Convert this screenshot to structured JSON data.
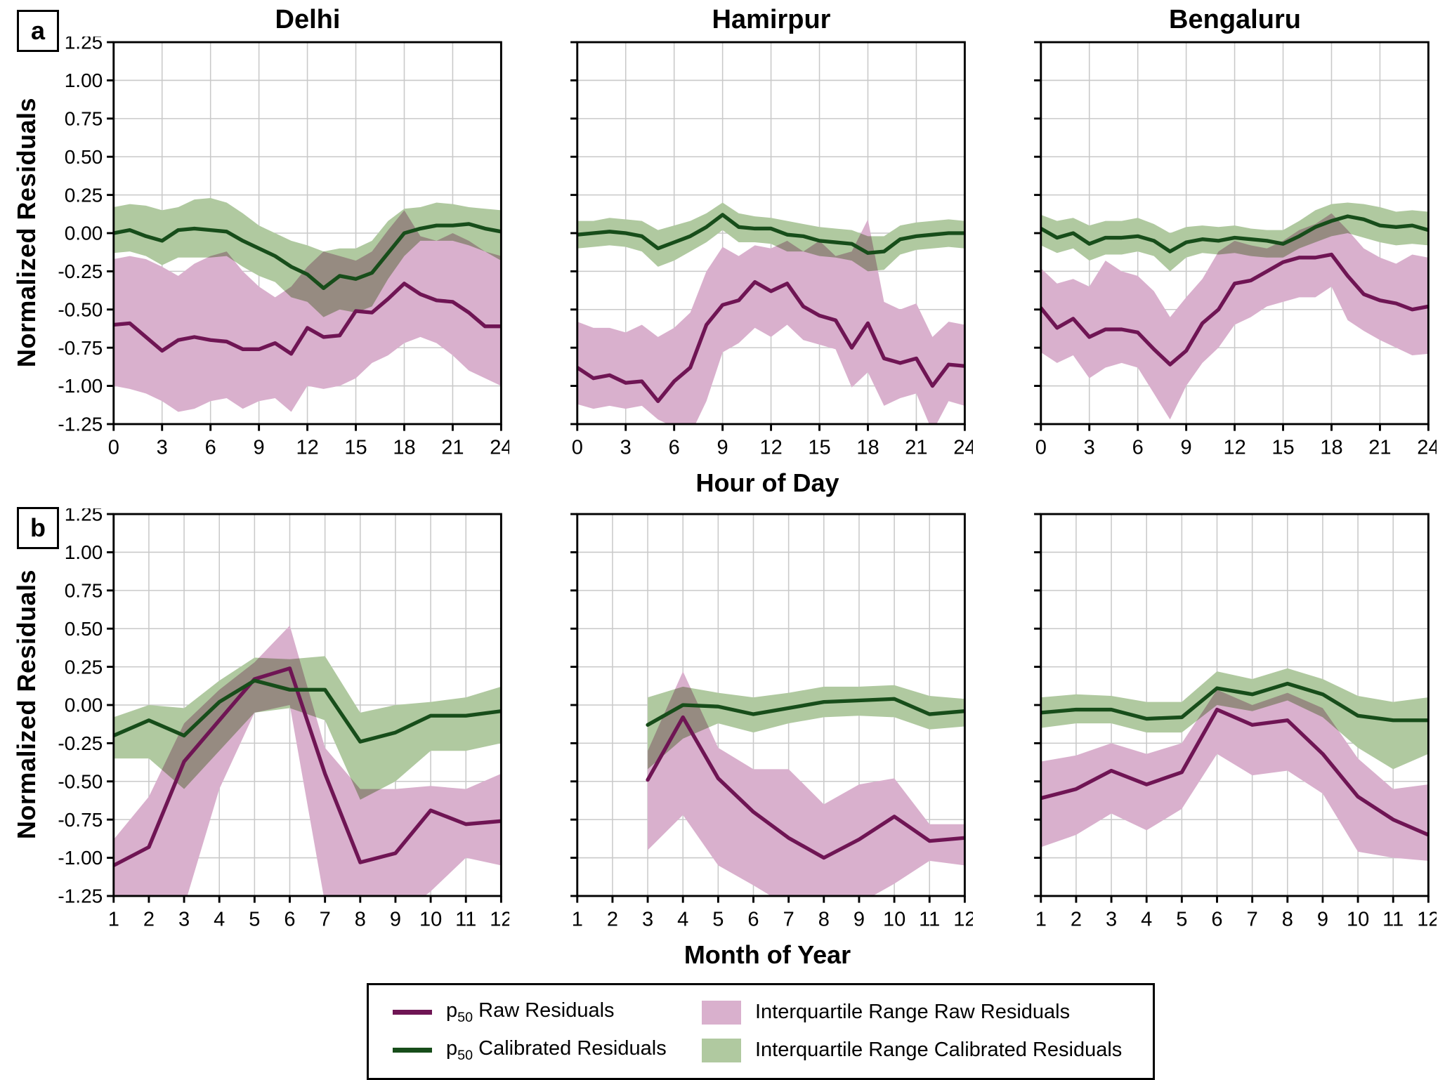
{
  "figure": {
    "panel_a": "a",
    "panel_b": "b",
    "ylabel": "Normalized Residuals",
    "xlabel_hour": "Hour of Day",
    "xlabel_month": "Month of Year",
    "titles": [
      "Delhi",
      "Hamirpur",
      "Bengaluru"
    ]
  },
  "colors": {
    "raw_line": "#6f1554",
    "calibrated_line": "#174d1a",
    "raw_band": "#d9b0cd",
    "calibrated_band": "#b0c9a0",
    "grid": "#c9c9c9",
    "axis": "#000000"
  },
  "axes": {
    "ylim": [
      -1.25,
      1.25
    ],
    "yticks": [
      1.25,
      1.0,
      0.75,
      0.5,
      0.25,
      0.0,
      -0.25,
      -0.5,
      -0.75,
      -1.0,
      -1.25
    ],
    "row_a": {
      "xlim": [
        0,
        24
      ],
      "xticks": [
        0,
        3,
        6,
        9,
        12,
        15,
        18,
        21,
        24
      ]
    },
    "row_b": {
      "xlim": [
        1,
        12
      ],
      "xticks": [
        1,
        2,
        3,
        4,
        5,
        6,
        7,
        8,
        9,
        10,
        11,
        12
      ]
    }
  },
  "legend": {
    "entries": [
      {
        "type": "line",
        "color_key": "raw_line",
        "label_pre": "p",
        "label_sub": "50",
        "label_post": " Raw Residuals"
      },
      {
        "type": "line",
        "color_key": "calibrated_line",
        "label_pre": "p",
        "label_sub": "50",
        "label_post": " Calibrated Residuals"
      },
      {
        "type": "patch",
        "color_key": "raw_band",
        "label": "Interquartile Range Raw Residuals"
      },
      {
        "type": "patch",
        "color_key": "calibrated_band",
        "label": "Interquartile Range Calibrated Residuals"
      }
    ]
  },
  "chart_data": [
    {
      "type": "line",
      "row": "a",
      "city": "Delhi",
      "xlabel": "Hour of Day",
      "ylabel": "Normalized Residuals",
      "x": [
        0,
        1,
        2,
        3,
        4,
        5,
        6,
        7,
        8,
        9,
        10,
        11,
        12,
        13,
        14,
        15,
        16,
        17,
        18,
        19,
        20,
        21,
        22,
        23,
        24
      ],
      "raw_median": [
        -0.6,
        -0.59,
        -0.68,
        -0.77,
        -0.7,
        -0.68,
        -0.7,
        -0.71,
        -0.76,
        -0.76,
        -0.72,
        -0.79,
        -0.62,
        -0.68,
        -0.67,
        -0.51,
        -0.52,
        -0.43,
        -0.33,
        -0.4,
        -0.44,
        -0.45,
        -0.52,
        -0.61,
        -0.61
      ],
      "raw_iqr_high": [
        -0.17,
        -0.15,
        -0.17,
        -0.22,
        -0.28,
        -0.2,
        -0.15,
        -0.12,
        -0.25,
        -0.35,
        -0.42,
        -0.35,
        -0.22,
        -0.12,
        -0.15,
        -0.18,
        -0.12,
        0.02,
        0.15,
        -0.02,
        -0.05,
        0.0,
        -0.05,
        -0.12,
        -0.15
      ],
      "raw_iqr_low": [
        -1.0,
        -1.02,
        -1.05,
        -1.1,
        -1.17,
        -1.15,
        -1.1,
        -1.08,
        -1.15,
        -1.1,
        -1.08,
        -1.17,
        -1.0,
        -1.02,
        -1.0,
        -0.95,
        -0.85,
        -0.8,
        -0.72,
        -0.68,
        -0.72,
        -0.8,
        -0.9,
        -0.95,
        -1.0
      ],
      "calibrated_median": [
        0.0,
        0.02,
        -0.02,
        -0.05,
        0.02,
        0.03,
        0.02,
        0.01,
        -0.05,
        -0.1,
        -0.15,
        -0.22,
        -0.27,
        -0.36,
        -0.28,
        -0.3,
        -0.26,
        -0.13,
        0.0,
        0.03,
        0.05,
        0.05,
        0.06,
        0.03,
        0.01
      ],
      "calibrated_iqr_high": [
        0.17,
        0.19,
        0.18,
        0.15,
        0.17,
        0.22,
        0.23,
        0.2,
        0.13,
        0.05,
        0.0,
        -0.05,
        -0.08,
        -0.12,
        -0.1,
        -0.1,
        -0.05,
        0.08,
        0.16,
        0.17,
        0.2,
        0.19,
        0.17,
        0.16,
        0.15
      ],
      "calibrated_iqr_low": [
        -0.13,
        -0.12,
        -0.15,
        -0.21,
        -0.16,
        -0.16,
        -0.16,
        -0.15,
        -0.22,
        -0.28,
        -0.32,
        -0.42,
        -0.45,
        -0.55,
        -0.5,
        -0.52,
        -0.48,
        -0.3,
        -0.15,
        -0.05,
        -0.05,
        -0.05,
        -0.08,
        -0.12,
        -0.18
      ]
    },
    {
      "type": "line",
      "row": "a",
      "city": "Hamirpur",
      "xlabel": "Hour of Day",
      "ylabel": "Normalized Residuals",
      "x": [
        0,
        1,
        2,
        3,
        4,
        5,
        6,
        7,
        8,
        9,
        10,
        11,
        12,
        13,
        14,
        15,
        16,
        17,
        18,
        19,
        20,
        21,
        22,
        23,
        24
      ],
      "raw_median": [
        -0.88,
        -0.95,
        -0.93,
        -0.98,
        -0.97,
        -1.1,
        -0.97,
        -0.88,
        -0.6,
        -0.47,
        -0.44,
        -0.32,
        -0.38,
        -0.33,
        -0.48,
        -0.54,
        -0.57,
        -0.75,
        -0.59,
        -0.82,
        -0.85,
        -0.82,
        -1.0,
        -0.86,
        -0.87
      ],
      "raw_iqr_high": [
        -0.58,
        -0.62,
        -0.62,
        -0.65,
        -0.6,
        -0.68,
        -0.62,
        -0.52,
        -0.25,
        -0.09,
        -0.15,
        -0.08,
        -0.1,
        -0.05,
        -0.12,
        -0.05,
        -0.15,
        -0.12,
        0.09,
        -0.45,
        -0.5,
        -0.46,
        -0.68,
        -0.58,
        -0.6
      ],
      "raw_iqr_low": [
        -1.12,
        -1.15,
        -1.13,
        -1.15,
        -1.13,
        -1.22,
        -1.27,
        -1.32,
        -1.1,
        -0.78,
        -0.72,
        -0.62,
        -0.68,
        -0.6,
        -0.7,
        -0.73,
        -0.76,
        -1.01,
        -0.91,
        -1.13,
        -1.08,
        -1.05,
        -1.3,
        -1.1,
        -1.13
      ],
      "calibrated_median": [
        -0.01,
        0.0,
        0.01,
        0.0,
        -0.02,
        -0.1,
        -0.06,
        -0.02,
        0.04,
        0.12,
        0.04,
        0.03,
        0.03,
        -0.01,
        -0.02,
        -0.05,
        -0.06,
        -0.07,
        -0.13,
        -0.12,
        -0.04,
        -0.02,
        -0.01,
        0.0,
        0.0
      ],
      "calibrated_iqr_high": [
        0.08,
        0.08,
        0.1,
        0.09,
        0.08,
        0.02,
        0.05,
        0.08,
        0.13,
        0.2,
        0.13,
        0.11,
        0.1,
        0.08,
        0.06,
        0.04,
        0.03,
        0.02,
        -0.02,
        -0.02,
        0.05,
        0.07,
        0.08,
        0.09,
        0.08
      ],
      "calibrated_iqr_low": [
        -0.1,
        -0.09,
        -0.08,
        -0.09,
        -0.12,
        -0.22,
        -0.18,
        -0.12,
        -0.06,
        0.02,
        -0.06,
        -0.06,
        -0.07,
        -0.12,
        -0.12,
        -0.15,
        -0.16,
        -0.18,
        -0.25,
        -0.24,
        -0.14,
        -0.11,
        -0.1,
        -0.09,
        -0.1
      ]
    },
    {
      "type": "line",
      "row": "a",
      "city": "Bengaluru",
      "xlabel": "Hour of Day",
      "ylabel": "Normalized Residuals",
      "x": [
        0,
        1,
        2,
        3,
        4,
        5,
        6,
        7,
        8,
        9,
        10,
        11,
        12,
        13,
        14,
        15,
        16,
        17,
        18,
        19,
        20,
        21,
        22,
        23,
        24
      ],
      "raw_median": [
        -0.49,
        -0.62,
        -0.56,
        -0.68,
        -0.63,
        -0.63,
        -0.65,
        -0.76,
        -0.86,
        -0.77,
        -0.59,
        -0.5,
        -0.33,
        -0.31,
        -0.25,
        -0.19,
        -0.16,
        -0.16,
        -0.14,
        -0.28,
        -0.4,
        -0.44,
        -0.46,
        -0.5,
        -0.48
      ],
      "raw_iqr_high": [
        -0.23,
        -0.33,
        -0.3,
        -0.35,
        -0.18,
        -0.25,
        -0.28,
        -0.38,
        -0.55,
        -0.42,
        -0.3,
        -0.12,
        -0.05,
        -0.08,
        -0.1,
        -0.05,
        0.02,
        0.06,
        0.13,
        0.02,
        -0.1,
        -0.16,
        -0.2,
        -0.14,
        -0.16
      ],
      "raw_iqr_low": [
        -0.78,
        -0.85,
        -0.8,
        -0.95,
        -0.88,
        -0.85,
        -0.88,
        -1.05,
        -1.22,
        -1.0,
        -0.85,
        -0.75,
        -0.6,
        -0.55,
        -0.48,
        -0.45,
        -0.42,
        -0.42,
        -0.35,
        -0.57,
        -0.64,
        -0.7,
        -0.75,
        -0.8,
        -0.79
      ],
      "calibrated_median": [
        0.03,
        -0.03,
        0.0,
        -0.07,
        -0.03,
        -0.03,
        -0.02,
        -0.05,
        -0.12,
        -0.06,
        -0.04,
        -0.05,
        -0.03,
        -0.04,
        -0.05,
        -0.07,
        -0.02,
        0.04,
        0.08,
        0.11,
        0.09,
        0.05,
        0.04,
        0.05,
        0.02
      ],
      "calibrated_iqr_high": [
        0.12,
        0.08,
        0.1,
        0.05,
        0.08,
        0.08,
        0.1,
        0.06,
        0.0,
        0.04,
        0.05,
        0.04,
        0.05,
        0.03,
        0.02,
        0.02,
        0.08,
        0.15,
        0.19,
        0.2,
        0.19,
        0.17,
        0.14,
        0.15,
        0.14
      ],
      "calibrated_iqr_low": [
        -0.08,
        -0.13,
        -0.1,
        -0.18,
        -0.14,
        -0.14,
        -0.12,
        -0.15,
        -0.25,
        -0.16,
        -0.13,
        -0.14,
        -0.13,
        -0.15,
        -0.16,
        -0.16,
        -0.1,
        -0.06,
        -0.02,
        0.0,
        -0.03,
        -0.06,
        -0.08,
        -0.07,
        -0.08
      ]
    },
    {
      "type": "line",
      "row": "b",
      "city": "Delhi",
      "xlabel": "Month of Year",
      "ylabel": "Normalized Residuals",
      "x": [
        1,
        2,
        3,
        4,
        5,
        6,
        7,
        8,
        9,
        10,
        11,
        12
      ],
      "raw_median": [
        -1.05,
        -0.93,
        -0.37,
        -0.1,
        0.17,
        0.24,
        -0.45,
        -1.03,
        -0.97,
        -0.69,
        -0.78,
        -0.76
      ],
      "raw_iqr_high": [
        -0.88,
        -0.6,
        -0.12,
        0.1,
        0.28,
        0.52,
        -0.28,
        -0.55,
        -0.55,
        -0.53,
        -0.55,
        -0.45
      ],
      "raw_iqr_low": [
        -1.24,
        -1.3,
        -1.32,
        -0.55,
        -0.05,
        0.0,
        -1.3,
        -1.4,
        -1.4,
        -1.22,
        -1.0,
        -1.05
      ],
      "calibrated_median": [
        -0.2,
        -0.1,
        -0.2,
        0.02,
        0.16,
        0.1,
        0.1,
        -0.24,
        -0.18,
        -0.07,
        -0.07,
        -0.04
      ],
      "calibrated_iqr_high": [
        -0.08,
        0.0,
        -0.02,
        0.16,
        0.31,
        0.3,
        0.32,
        -0.05,
        0.0,
        0.02,
        0.05,
        0.12
      ],
      "calibrated_iqr_low": [
        -0.35,
        -0.35,
        -0.55,
        -0.3,
        -0.05,
        -0.02,
        -0.1,
        -0.62,
        -0.5,
        -0.3,
        -0.3,
        -0.25
      ]
    },
    {
      "type": "line",
      "row": "b",
      "city": "Hamirpur",
      "xlabel": "Month of Year",
      "ylabel": "Normalized Residuals",
      "x": [
        1,
        2,
        3,
        4,
        5,
        6,
        7,
        8,
        9,
        10,
        11,
        12
      ],
      "raw_median": [
        null,
        null,
        -0.49,
        -0.08,
        -0.48,
        -0.7,
        -0.87,
        -1.0,
        -0.88,
        -0.73,
        -0.89,
        -0.87
      ],
      "raw_iqr_high": [
        null,
        null,
        -0.3,
        0.22,
        -0.28,
        -0.42,
        -0.42,
        -0.65,
        -0.52,
        -0.48,
        -0.78,
        -0.78
      ],
      "raw_iqr_low": [
        null,
        null,
        -0.95,
        -0.72,
        -1.05,
        -1.18,
        -1.32,
        -1.38,
        -1.3,
        -1.17,
        -1.02,
        -1.05
      ],
      "calibrated_median": [
        null,
        null,
        -0.13,
        0.0,
        -0.01,
        -0.06,
        -0.02,
        0.02,
        0.03,
        0.04,
        -0.06,
        -0.04
      ],
      "calibrated_iqr_high": [
        null,
        null,
        0.05,
        0.12,
        0.08,
        0.05,
        0.08,
        0.12,
        0.12,
        0.13,
        0.06,
        0.04
      ],
      "calibrated_iqr_low": [
        null,
        null,
        -0.42,
        -0.22,
        -0.12,
        -0.18,
        -0.12,
        -0.08,
        -0.07,
        -0.08,
        -0.16,
        -0.14
      ]
    },
    {
      "type": "line",
      "row": "b",
      "city": "Bengaluru",
      "xlabel": "Month of Year",
      "ylabel": "Normalized Residuals",
      "x": [
        1,
        2,
        3,
        4,
        5,
        6,
        7,
        8,
        9,
        10,
        11,
        12
      ],
      "raw_median": [
        -0.61,
        -0.55,
        -0.43,
        -0.52,
        -0.44,
        -0.03,
        -0.13,
        -0.1,
        -0.32,
        -0.6,
        -0.75,
        -0.85
      ],
      "raw_iqr_high": [
        -0.37,
        -0.33,
        -0.25,
        -0.32,
        -0.25,
        0.1,
        0.0,
        0.08,
        -0.02,
        -0.35,
        -0.55,
        -0.52
      ],
      "raw_iqr_low": [
        -0.93,
        -0.85,
        -0.71,
        -0.82,
        -0.68,
        -0.32,
        -0.46,
        -0.43,
        -0.58,
        -0.96,
        -1.0,
        -1.02
      ],
      "calibrated_median": [
        -0.05,
        -0.03,
        -0.03,
        -0.09,
        -0.08,
        0.11,
        0.07,
        0.14,
        0.07,
        -0.07,
        -0.1,
        -0.1
      ],
      "calibrated_iqr_high": [
        0.05,
        0.07,
        0.06,
        0.02,
        0.02,
        0.22,
        0.17,
        0.24,
        0.17,
        0.06,
        0.02,
        0.05
      ],
      "calibrated_iqr_low": [
        -0.15,
        -0.12,
        -0.12,
        -0.18,
        -0.18,
        0.0,
        -0.04,
        0.03,
        -0.08,
        -0.28,
        -0.42,
        -0.32
      ]
    }
  ]
}
